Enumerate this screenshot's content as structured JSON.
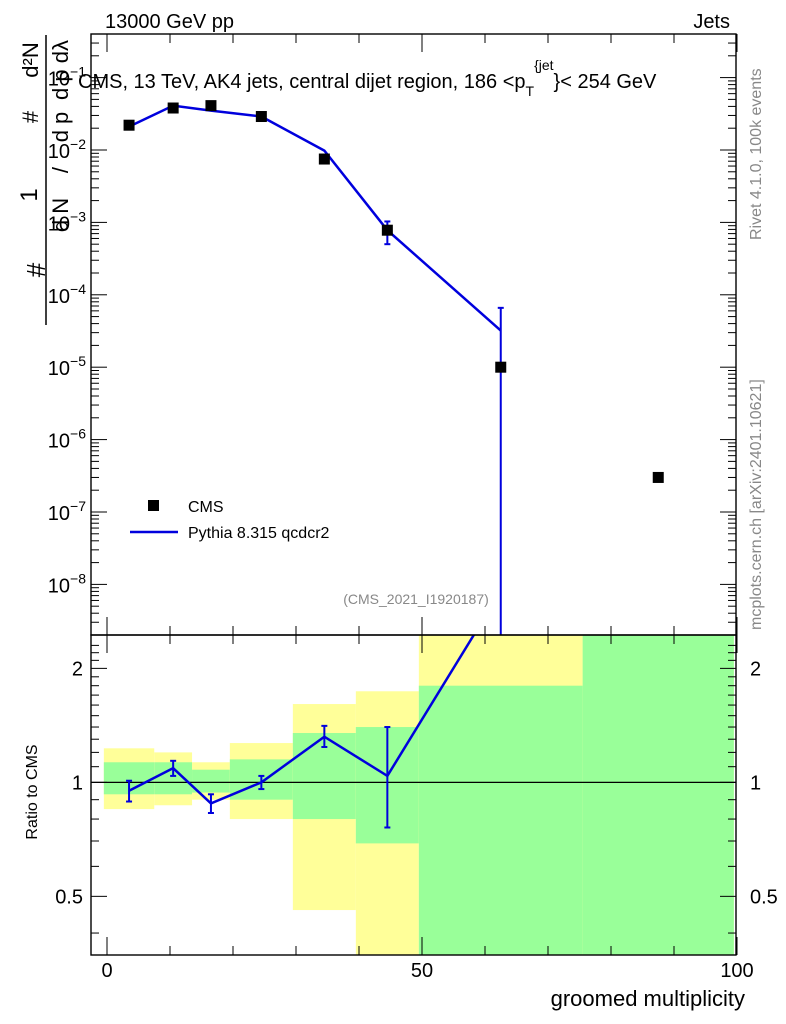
{
  "header": {
    "energy": "13000 GeV pp",
    "category": "Jets"
  },
  "side": {
    "rivet": "Rivet 4.1.0,  100k events",
    "mcplots": "mcplots.cern.ch [arXiv:2401.10621]"
  },
  "chart_data": {
    "type": "scatter",
    "title": "CMS, 13 TeV, AK4 jets, central dijet region, 186 <p_T^{jet}> < 254 GeV",
    "title_parts": {
      "pre": "CMS, 13 TeV, AK4 jets, central dijet region, 186 <p",
      "sub": "T",
      "sup": "{jet",
      "post": "}< 254 GeV"
    },
    "analysis_id": "(CMS_2021_I1920187)",
    "xlabel": "groomed multiplicity",
    "ylabel_parts": {
      "one": "1",
      "hash": "#",
      "dN": "d N",
      "dpT": "d p",
      "T": "T",
      "d2N": "d²N",
      "dpTdl": "d p  dλ",
      "slash": "/"
    },
    "xlim": [
      -2,
      100
    ],
    "x_ticks": [
      0,
      50,
      100
    ],
    "x_tick_labels": [
      "0",
      "50",
      "100"
    ],
    "main": {
      "yscale": "log",
      "ylim": [
        2e-09,
        0.4
      ],
      "y_tick_labels": [
        {
          "v": 0.1,
          "base": "10",
          "exp": "−1"
        },
        {
          "v": 0.01,
          "base": "10",
          "exp": "−2"
        },
        {
          "v": 0.001,
          "base": "10",
          "exp": "−3"
        },
        {
          "v": 0.0001,
          "base": "10",
          "exp": "−4"
        },
        {
          "v": 1e-05,
          "base": "10",
          "exp": "−5"
        },
        {
          "v": 1e-06,
          "base": "10",
          "exp": "−6"
        },
        {
          "v": 1e-07,
          "base": "10",
          "exp": "−7"
        },
        {
          "v": 1e-08,
          "base": "10",
          "exp": "−8"
        }
      ],
      "series": [
        {
          "name": "CMS",
          "kind": "markers",
          "x": [
            3.5,
            10.5,
            16.5,
            24.5,
            34.5,
            44.5,
            62.5,
            87.5
          ],
          "y": [
            0.022,
            0.038,
            0.041,
            0.029,
            0.0075,
            0.00078,
            1e-05,
            3e-07
          ]
        },
        {
          "name": "Pythia 8.315 qcdcr2",
          "kind": "line",
          "color": "#0000dd",
          "x": [
            3.5,
            10.5,
            16.5,
            24.5,
            34.5,
            44.5,
            62.5
          ],
          "y": [
            0.021,
            0.041,
            0.035,
            0.029,
            0.0098,
            0.00078,
            3.2e-05
          ],
          "err_lo": [
            0.0,
            0.0,
            0.0,
            0.0,
            0.0,
            0.00028,
            3.2e-05
          ],
          "err_hi": [
            0.0,
            0.0,
            0.0,
            0.0,
            0.0,
            0.00025,
            3.4e-05
          ]
        }
      ]
    },
    "legend": [
      {
        "label": "CMS",
        "kind": "marker"
      },
      {
        "label": "Pythia 8.315 qcdcr2",
        "kind": "line",
        "color": "#0000dd"
      }
    ],
    "legend_position": "bottom-left",
    "ratio": {
      "ylabel": "Ratio to CMS",
      "yscale": "log",
      "ylim": [
        0.35,
        2.45
      ],
      "y_ticks": [
        0.5,
        1,
        2
      ],
      "y_tick_labels": [
        "0.5",
        "1",
        "2"
      ],
      "bands": [
        {
          "x0": -0.5,
          "x1": 7.5,
          "y_lo": 0.85,
          "y_hi": 1.23,
          "g_lo": 0.93,
          "g_hi": 1.13
        },
        {
          "x0": 7.5,
          "x1": 13.5,
          "y_lo": 0.87,
          "y_hi": 1.2,
          "g_lo": 0.93,
          "g_hi": 1.13
        },
        {
          "x0": 13.5,
          "x1": 19.5,
          "y_lo": 0.9,
          "y_hi": 1.13,
          "g_lo": 0.94,
          "g_hi": 1.08
        },
        {
          "x0": 19.5,
          "x1": 29.5,
          "y_lo": 0.8,
          "y_hi": 1.27,
          "g_lo": 0.9,
          "g_hi": 1.15
        },
        {
          "x0": 29.5,
          "x1": 39.5,
          "y_lo": 0.46,
          "y_hi": 1.61,
          "g_lo": 0.8,
          "g_hi": 1.35
        },
        {
          "x0": 39.5,
          "x1": 49.5,
          "y_lo": 0.32,
          "y_hi": 1.74,
          "g_lo": 0.69,
          "g_hi": 1.4
        },
        {
          "x0": 49.5,
          "x1": 75.5,
          "y_lo": 0.32,
          "y_hi": 3.0,
          "g_lo": 0.32,
          "g_hi": 1.8
        },
        {
          "x0": 75.5,
          "x1": 99.5,
          "y_lo": 0.32,
          "y_hi": 3.0,
          "g_lo": 0.32,
          "g_hi": 3.0
        }
      ],
      "mc": {
        "x": [
          3.5,
          10.5,
          16.5,
          24.5,
          34.5,
          44.5,
          62.5
        ],
        "y": [
          0.95,
          1.09,
          0.88,
          1.0,
          1.32,
          1.04,
          3.2
        ],
        "err_lo": [
          0.06,
          0.05,
          0.05,
          0.04,
          0.08,
          0.28,
          0.0
        ],
        "err_hi": [
          0.06,
          0.05,
          0.05,
          0.04,
          0.09,
          0.36,
          0.0
        ]
      }
    }
  }
}
